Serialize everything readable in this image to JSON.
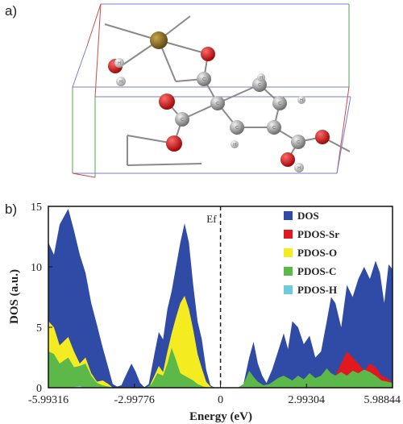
{
  "panels": {
    "a": "a)",
    "b": "b)"
  },
  "molecule_atom_labels": [
    "H",
    "H",
    "C",
    "C",
    "C",
    "C",
    "C",
    "C",
    "C",
    "C",
    "H",
    "H",
    "H",
    "H"
  ],
  "chart_data": {
    "type": "area",
    "xlabel": "Energy (eV)",
    "ylabel": "DOS (a.u.)",
    "xlim": [
      -5.99316,
      5.98844
    ],
    "ylim": [
      0,
      15
    ],
    "xticks": [
      -5.99316,
      -2.99776,
      0,
      2.99304,
      5.98844
    ],
    "xtick_labels": [
      "-5.99316",
      "-2.99776",
      "0",
      "2.99304",
      "5.98844"
    ],
    "yticks": [
      0,
      5,
      10,
      15
    ],
    "ytick_labels": [
      "0",
      "5",
      "10",
      "15"
    ],
    "grid": false,
    "legend_position": "top-right",
    "fermi_level": {
      "x": 0,
      "label": "Ef"
    },
    "series": [
      {
        "name": "DOS",
        "color": "#2f4ba5",
        "points": [
          [
            -5.99,
            12.0
          ],
          [
            -5.8,
            11.0
          ],
          [
            -5.6,
            13.5
          ],
          [
            -5.3,
            14.8
          ],
          [
            -5.1,
            13.0
          ],
          [
            -4.9,
            11.0
          ],
          [
            -4.7,
            9.5
          ],
          [
            -4.5,
            7.0
          ],
          [
            -4.3,
            5.2
          ],
          [
            -4.1,
            3.3
          ],
          [
            -3.9,
            1.6
          ],
          [
            -3.75,
            0.3
          ],
          [
            -3.6,
            0.1
          ],
          [
            -3.45,
            0.2
          ],
          [
            -3.3,
            1.0
          ],
          [
            -3.1,
            2.0
          ],
          [
            -2.95,
            1.3
          ],
          [
            -2.8,
            0.4
          ],
          [
            -2.65,
            0.05
          ],
          [
            -2.5,
            0.3
          ],
          [
            -2.3,
            2.8
          ],
          [
            -2.15,
            4.6
          ],
          [
            -2.0,
            4.0
          ],
          [
            -1.85,
            6.5
          ],
          [
            -1.7,
            8.0
          ],
          [
            -1.55,
            10.0
          ],
          [
            -1.4,
            12.0
          ],
          [
            -1.25,
            13.6
          ],
          [
            -1.1,
            12.0
          ],
          [
            -0.95,
            8.5
          ],
          [
            -0.8,
            5.5
          ],
          [
            -0.65,
            4.0
          ],
          [
            -0.5,
            1.5
          ],
          [
            -0.35,
            0.2
          ],
          [
            -0.2,
            0.0
          ],
          [
            0.6,
            0.0
          ],
          [
            0.8,
            0.3
          ],
          [
            1.0,
            2.5
          ],
          [
            1.15,
            3.8
          ],
          [
            1.3,
            2.0
          ],
          [
            1.45,
            1.0
          ],
          [
            1.6,
            0.4
          ],
          [
            1.8,
            1.5
          ],
          [
            2.0,
            3.0
          ],
          [
            2.2,
            4.5
          ],
          [
            2.35,
            3.2
          ],
          [
            2.5,
            5.5
          ],
          [
            2.7,
            5.0
          ],
          [
            2.9,
            3.6
          ],
          [
            3.1,
            4.3
          ],
          [
            3.3,
            2.5
          ],
          [
            3.5,
            3.0
          ],
          [
            3.7,
            5.5
          ],
          [
            3.85,
            7.5
          ],
          [
            4.0,
            7.0
          ],
          [
            4.2,
            5.0
          ],
          [
            4.4,
            8.5
          ],
          [
            4.6,
            7.5
          ],
          [
            4.8,
            9.0
          ],
          [
            5.0,
            10.0
          ],
          [
            5.2,
            9.0
          ],
          [
            5.4,
            10.5
          ],
          [
            5.55,
            9.5
          ],
          [
            5.7,
            7.0
          ],
          [
            5.85,
            10.2
          ],
          [
            5.99,
            9.8
          ]
        ]
      },
      {
        "name": "PDOS-Sr",
        "color": "#e0191f",
        "points": [
          [
            -5.99,
            0.0
          ],
          [
            0.6,
            0.0
          ],
          [
            3.3,
            0.0
          ],
          [
            3.6,
            0.3
          ],
          [
            4.0,
            1.0
          ],
          [
            4.2,
            2.0
          ],
          [
            4.4,
            3.0
          ],
          [
            4.6,
            2.5
          ],
          [
            4.8,
            2.0
          ],
          [
            5.0,
            1.4
          ],
          [
            5.2,
            2.0
          ],
          [
            5.4,
            1.7
          ],
          [
            5.6,
            1.0
          ],
          [
            5.8,
            0.8
          ],
          [
            5.99,
            0.4
          ]
        ]
      },
      {
        "name": "PDOS-O",
        "color": "#f4ec21",
        "points": [
          [
            -5.99,
            5.5
          ],
          [
            -5.8,
            5.0
          ],
          [
            -5.6,
            3.5
          ],
          [
            -5.3,
            4.2
          ],
          [
            -5.1,
            3.0
          ],
          [
            -4.9,
            2.0
          ],
          [
            -4.7,
            2.5
          ],
          [
            -4.5,
            1.2
          ],
          [
            -4.3,
            0.5
          ],
          [
            -4.1,
            0.6
          ],
          [
            -3.9,
            0.3
          ],
          [
            -3.75,
            0.0
          ],
          [
            -2.5,
            0.0
          ],
          [
            -2.3,
            1.0
          ],
          [
            -2.15,
            1.8
          ],
          [
            -2.0,
            1.3
          ],
          [
            -1.85,
            3.0
          ],
          [
            -1.7,
            4.5
          ],
          [
            -1.55,
            5.8
          ],
          [
            -1.4,
            7.0
          ],
          [
            -1.25,
            7.6
          ],
          [
            -1.1,
            6.5
          ],
          [
            -0.95,
            4.8
          ],
          [
            -0.8,
            2.8
          ],
          [
            -0.65,
            1.6
          ],
          [
            -0.5,
            0.5
          ],
          [
            -0.35,
            0.1
          ],
          [
            -0.2,
            0.0
          ],
          [
            5.99,
            0.0
          ]
        ]
      },
      {
        "name": "PDOS-C",
        "color": "#5db84a",
        "points": [
          [
            -5.99,
            3.0
          ],
          [
            -5.8,
            2.8
          ],
          [
            -5.6,
            2.0
          ],
          [
            -5.3,
            2.5
          ],
          [
            -5.1,
            1.7
          ],
          [
            -4.9,
            1.8
          ],
          [
            -4.7,
            2.0
          ],
          [
            -4.5,
            1.0
          ],
          [
            -4.3,
            0.4
          ],
          [
            -4.1,
            0.2
          ],
          [
            -3.9,
            0.1
          ],
          [
            -3.75,
            0.0
          ],
          [
            -2.6,
            0.0
          ],
          [
            -2.4,
            0.3
          ],
          [
            -2.2,
            1.2
          ],
          [
            -2.0,
            1.0
          ],
          [
            -1.85,
            2.0
          ],
          [
            -1.7,
            3.3
          ],
          [
            -1.55,
            2.3
          ],
          [
            -1.4,
            1.2
          ],
          [
            -1.25,
            1.0
          ],
          [
            -1.1,
            0.8
          ],
          [
            -0.95,
            0.6
          ],
          [
            -0.8,
            0.3
          ],
          [
            -0.6,
            0.1
          ],
          [
            -0.4,
            0.0
          ],
          [
            0.6,
            0.0
          ],
          [
            0.8,
            0.3
          ],
          [
            1.0,
            1.4
          ],
          [
            1.15,
            0.9
          ],
          [
            1.3,
            0.5
          ],
          [
            1.5,
            0.2
          ],
          [
            1.7,
            0.3
          ],
          [
            2.0,
            0.8
          ],
          [
            2.2,
            1.0
          ],
          [
            2.5,
            0.6
          ],
          [
            2.7,
            1.0
          ],
          [
            2.9,
            0.7
          ],
          [
            3.1,
            1.2
          ],
          [
            3.3,
            0.8
          ],
          [
            3.5,
            1.0
          ],
          [
            3.7,
            1.6
          ],
          [
            3.85,
            1.2
          ],
          [
            4.0,
            1.0
          ],
          [
            4.2,
            1.3
          ],
          [
            4.4,
            1.0
          ],
          [
            4.6,
            1.4
          ],
          [
            4.8,
            1.2
          ],
          [
            5.0,
            1.5
          ],
          [
            5.2,
            1.3
          ],
          [
            5.4,
            1.0
          ],
          [
            5.6,
            0.6
          ],
          [
            5.8,
            0.5
          ],
          [
            5.99,
            0.4
          ]
        ]
      },
      {
        "name": "PDOS-H",
        "color": "#6ccbdd",
        "points": [
          [
            -5.99,
            0.0
          ],
          [
            -5.2,
            0.0
          ],
          [
            -5.0,
            0.1
          ],
          [
            -4.9,
            0.15
          ],
          [
            -4.8,
            0.05
          ],
          [
            -4.7,
            0.0
          ],
          [
            5.99,
            0.0
          ]
        ]
      }
    ]
  }
}
